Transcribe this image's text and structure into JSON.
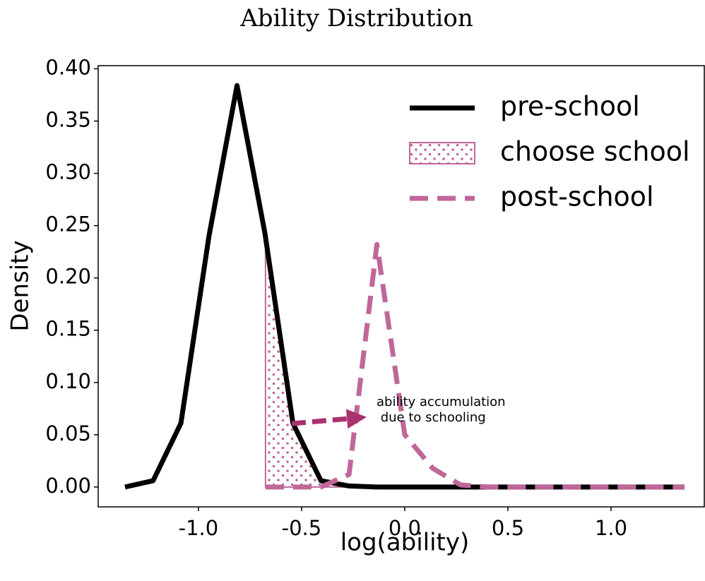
{
  "chart_data": {
    "type": "line",
    "title": "Ability Distribution",
    "xlabel": "log(ability)",
    "ylabel": "Density",
    "xlim": [
      -1.486,
      1.452
    ],
    "ylim": [
      -0.019,
      0.403
    ],
    "xticks": [
      {
        "value": -1,
        "label": "-1.0"
      },
      {
        "value": -0.5,
        "label": "-0.5"
      },
      {
        "value": 0,
        "label": "0.0"
      },
      {
        "value": 0.5,
        "label": "0.5"
      },
      {
        "value": 1,
        "label": "1.0"
      }
    ],
    "yticks": [
      {
        "value": 0,
        "label": "0.00"
      },
      {
        "value": 0.05,
        "label": "0.05"
      },
      {
        "value": 0.1,
        "label": "0.10"
      },
      {
        "value": 0.15,
        "label": "0.15"
      },
      {
        "value": 0.2,
        "label": "0.20"
      },
      {
        "value": 0.25,
        "label": "0.25"
      },
      {
        "value": 0.3,
        "label": "0.30"
      },
      {
        "value": 0.35,
        "label": "0.35"
      },
      {
        "value": 0.4,
        "label": "0.40"
      }
    ],
    "legend": "upper right",
    "series": [
      {
        "name": "pre-school",
        "style": "solid",
        "color": "#000000",
        "x": [
          -1.356,
          -1.22,
          -1.085,
          -0.949,
          -0.813,
          -0.678,
          -0.542,
          -0.406,
          -0.27,
          -0.135,
          0.0,
          0.135,
          0.27,
          0.406,
          0.542,
          0.678,
          0.813,
          0.949,
          1.085,
          1.22,
          1.356
        ],
        "values": [
          0,
          0.006,
          0.061,
          0.24,
          0.384,
          0.243,
          0.061,
          0.006,
          0.001,
          0,
          0,
          0,
          0,
          0,
          0,
          0,
          0,
          0,
          0,
          0,
          0
        ]
      },
      {
        "name": "choose school",
        "style": "dotted-area",
        "color": "#c0679a",
        "x": [
          -0.675,
          -0.542,
          -0.406,
          -0.27
        ],
        "values": [
          0.233,
          0.061,
          0.006,
          0.001
        ]
      },
      {
        "name": "post-school",
        "style": "dashed",
        "color": "#c0679a",
        "x": [
          -0.675,
          -0.542,
          -0.406,
          -0.27,
          -0.135,
          0.0,
          0.135,
          0.27,
          0.406,
          0.542,
          0.678,
          0.813,
          0.949,
          1.085,
          1.22,
          1.356
        ],
        "values": [
          0,
          0,
          0,
          0.012,
          0.232,
          0.05,
          0.018,
          0.002,
          0,
          0,
          0,
          0,
          0,
          0,
          0,
          0
        ]
      }
    ],
    "annotation": "ability accumulation\n due to schooling"
  }
}
